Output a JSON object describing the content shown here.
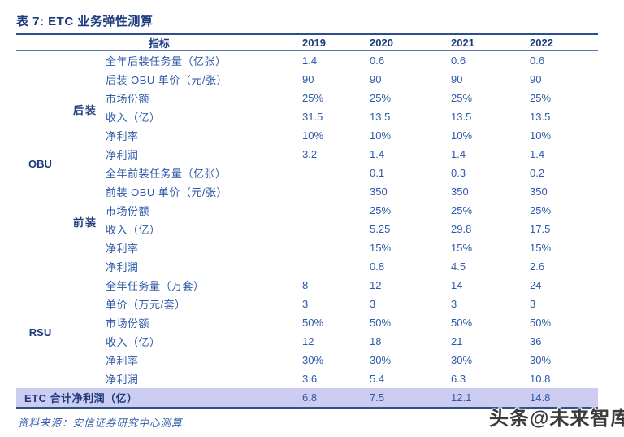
{
  "title": "表 7: ETC 业务弹性测算",
  "header": {
    "indicator": "指标",
    "years": [
      "2019",
      "2020",
      "2021",
      "2022"
    ]
  },
  "groups": [
    {
      "name": "OBU",
      "subgroups": [
        {
          "name": "后装",
          "rows": [
            {
              "label": "全年后装任务量（亿张）",
              "values": [
                "1.4",
                "0.6",
                "0.6",
                "0.6"
              ]
            },
            {
              "label": "后装 OBU 单价（元/张）",
              "values": [
                "90",
                "90",
                "90",
                "90"
              ]
            },
            {
              "label": "市场份额",
              "values": [
                "25%",
                "25%",
                "25%",
                "25%"
              ]
            },
            {
              "label": "收入（亿）",
              "values": [
                "31.5",
                "13.5",
                "13.5",
                "13.5"
              ]
            },
            {
              "label": "净利率",
              "values": [
                "10%",
                "10%",
                "10%",
                "10%"
              ]
            },
            {
              "label": "净利润",
              "values": [
                "3.2",
                "1.4",
                "1.4",
                "1.4"
              ]
            }
          ]
        },
        {
          "name": "前装",
          "rows": [
            {
              "label": "全年前装任务量（亿张）",
              "values": [
                "",
                "0.1",
                "0.3",
                "0.2"
              ]
            },
            {
              "label": "前装 OBU 单价（元/张）",
              "values": [
                "",
                "350",
                "350",
                "350"
              ]
            },
            {
              "label": "市场份额",
              "values": [
                "",
                "25%",
                "25%",
                "25%"
              ]
            },
            {
              "label": "收入（亿）",
              "values": [
                "",
                "5.25",
                "29.8",
                "17.5"
              ]
            },
            {
              "label": "净利率",
              "values": [
                "",
                "15%",
                "15%",
                "15%"
              ]
            },
            {
              "label": "净利润",
              "values": [
                "",
                "0.8",
                "4.5",
                "2.6"
              ]
            }
          ]
        }
      ]
    },
    {
      "name": "RSU",
      "subgroups": [
        {
          "name": "",
          "rows": [
            {
              "label": "全年任务量（万套）",
              "values": [
                "8",
                "12",
                "14",
                "24"
              ]
            },
            {
              "label": "单价（万元/套）",
              "values": [
                "3",
                "3",
                "3",
                "3"
              ]
            },
            {
              "label": "市场份额",
              "values": [
                "50%",
                "50%",
                "50%",
                "50%"
              ]
            },
            {
              "label": "收入（亿）",
              "values": [
                "12",
                "18",
                "21",
                "36"
              ]
            },
            {
              "label": "净利率",
              "values": [
                "30%",
                "30%",
                "30%",
                "30%"
              ]
            },
            {
              "label": "净利润",
              "values": [
                "3.6",
                "5.4",
                "6.3",
                "10.8"
              ]
            }
          ]
        }
      ]
    }
  ],
  "total_row": {
    "label": "ETC 合计净利润（亿）",
    "values": [
      "6.8",
      "7.5",
      "12.1",
      "14.8"
    ]
  },
  "footer": {
    "source": "资料来源：安信证券研究中心测算"
  },
  "watermark": {
    "text": "头条@未来智库"
  },
  "colors": {
    "accent_navy": "#1B3B7C",
    "body_blue": "#2E5AA9",
    "rule_blue": "#2F4E8C",
    "highlight_bg": "#CCCCF0"
  }
}
